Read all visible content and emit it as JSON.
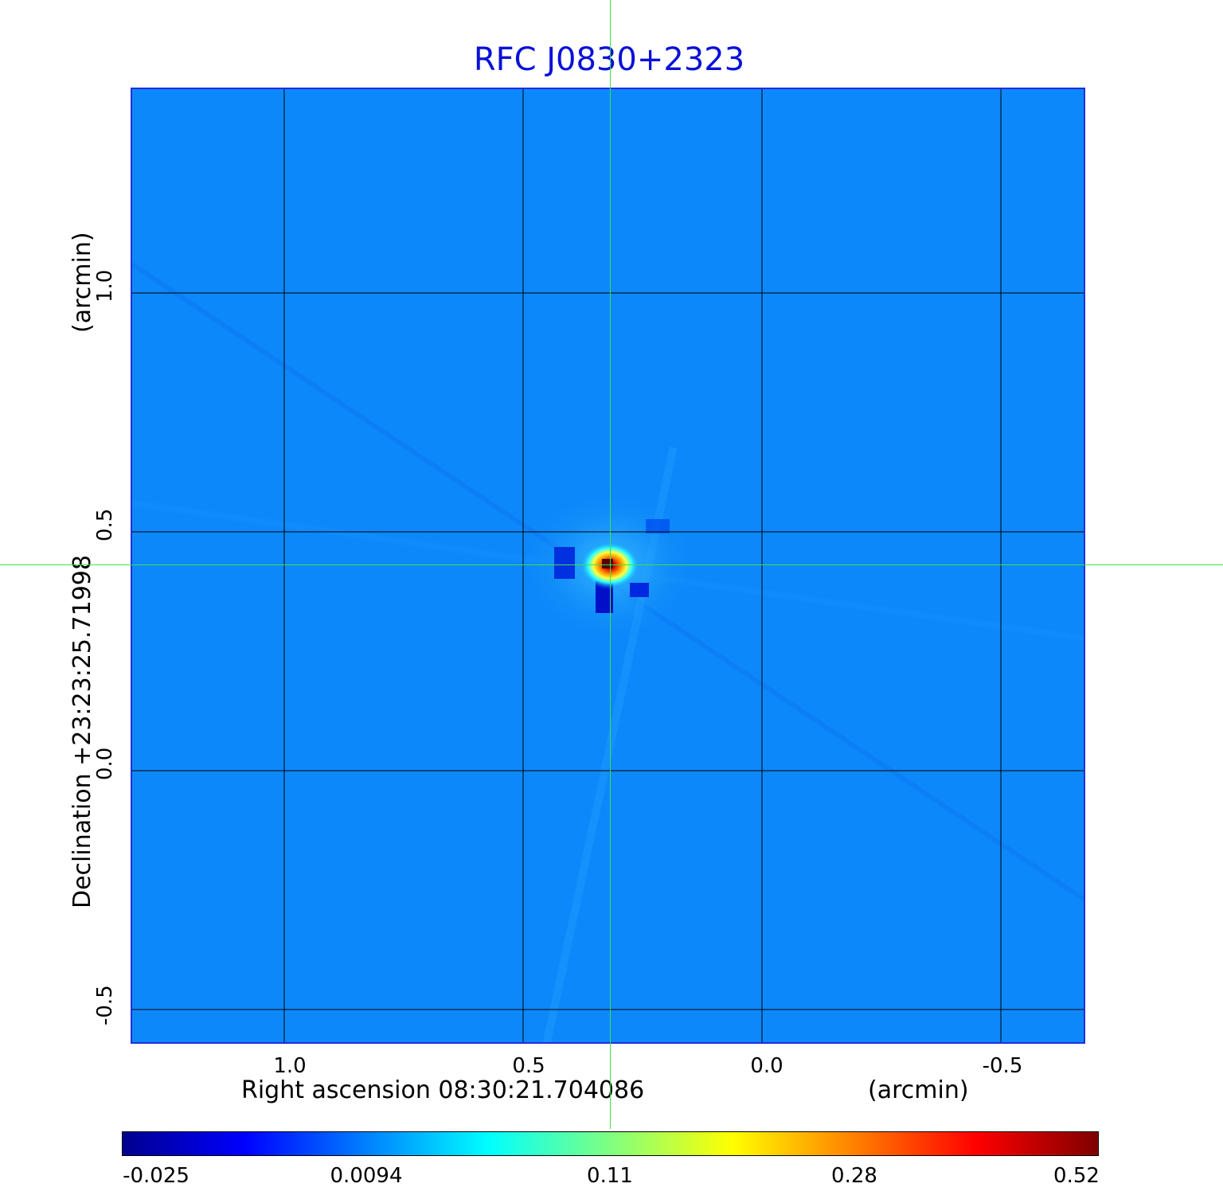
{
  "title": "RFC J0830+2323",
  "axes": {
    "x_label_left": "Right ascension  08:30:21.704086",
    "x_label_unit": "(arcmin)",
    "y_label": "Declination  +23:23:25.71998",
    "y_label_unit": "(arcmin)",
    "x_ticks": [
      "1.0",
      "0.5",
      "0.0",
      "-0.5"
    ],
    "y_ticks": [
      "1.0",
      "0.5",
      "0.0",
      "-0.5"
    ]
  },
  "colorbar": {
    "tick_labels": [
      "-0.025",
      "0.0094",
      "0.11",
      "0.28",
      "0.52"
    ],
    "colormap": [
      "#00008f",
      "#0000ff",
      "#0080ff",
      "#00ffff",
      "#80ff80",
      "#ffff00",
      "#ff8000",
      "#ff0000",
      "#800000"
    ]
  },
  "colors": {
    "title": "#0a10d8",
    "frame": "#1f2ee0",
    "background_map": "#0d88fa",
    "crosshair": "#39e349",
    "grid": "#000000"
  }
}
